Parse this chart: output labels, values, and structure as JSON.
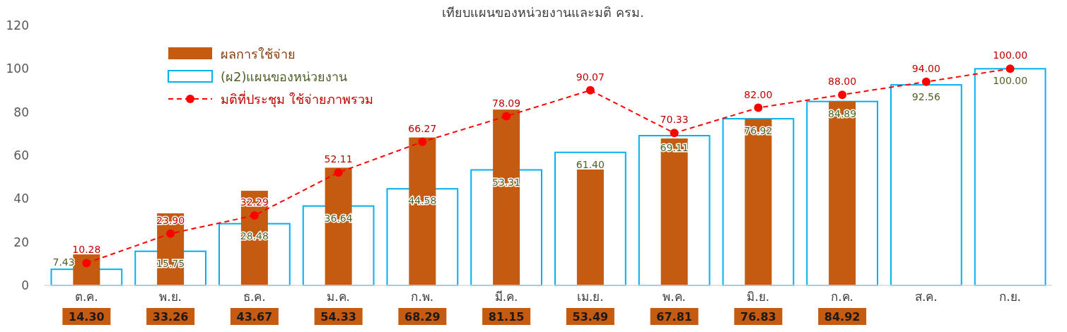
{
  "chart_data": {
    "type": "bar",
    "title": "เทียบแผนของหน่วยงานและมติ ครม.",
    "categories": [
      "ต.ค.",
      "พ.ย.",
      "ธ.ค.",
      "ม.ค.",
      "ก.พ.",
      "มี.ค.",
      "เม.ย.",
      "พ.ค.",
      "มิ.ย.",
      "ก.ค.",
      "ส.ค.",
      "ก.ย."
    ],
    "series": [
      {
        "name": "ผลการใช้จ่าย",
        "color": "#c55a11",
        "values": [
          14.3,
          33.26,
          43.67,
          54.33,
          68.29,
          81.15,
          53.49,
          67.81,
          76.83,
          84.92,
          null,
          null
        ],
        "value_labels": [
          "14.30",
          "33.26",
          "43.67",
          "54.33",
          "68.29",
          "81.15",
          "53.49",
          "67.81",
          "76.83",
          "84.92",
          null,
          null
        ]
      },
      {
        "name": "(ผ2)แผนของหน่วยงาน",
        "type": "bar",
        "color": "#00b0f0",
        "values": [
          7.43,
          15.75,
          28.48,
          36.64,
          44.58,
          53.31,
          61.4,
          69.11,
          76.92,
          84.89,
          92.56,
          100.0
        ],
        "value_labels": [
          "7.43",
          "15.75",
          "28.48",
          "36.64",
          "44.58",
          "53.31",
          "61.40",
          "69.11",
          "76.92",
          "84.89",
          "92.56",
          "100.00"
        ]
      },
      {
        "name": "มติที่ประชุม ใช้จ่ายภาพรวม",
        "type": "line",
        "color": "#ff0000",
        "marker": "circle",
        "line_style": "dashed",
        "values": [
          10.28,
          23.9,
          32.29,
          52.11,
          66.27,
          78.09,
          90.07,
          70.33,
          82.0,
          88.0,
          94.0,
          100.0
        ],
        "value_labels": [
          "10.28",
          "23.90",
          "32.29",
          "52.11",
          "66.27",
          "78.09",
          "90.07",
          "70.33",
          "82.00",
          "88.00",
          "94.00",
          "100.00"
        ]
      }
    ],
    "ylim": [
      0,
      120
    ],
    "yticks": [
      0,
      20,
      40,
      60,
      80,
      100,
      120
    ],
    "grid": false,
    "legend": "top left"
  }
}
